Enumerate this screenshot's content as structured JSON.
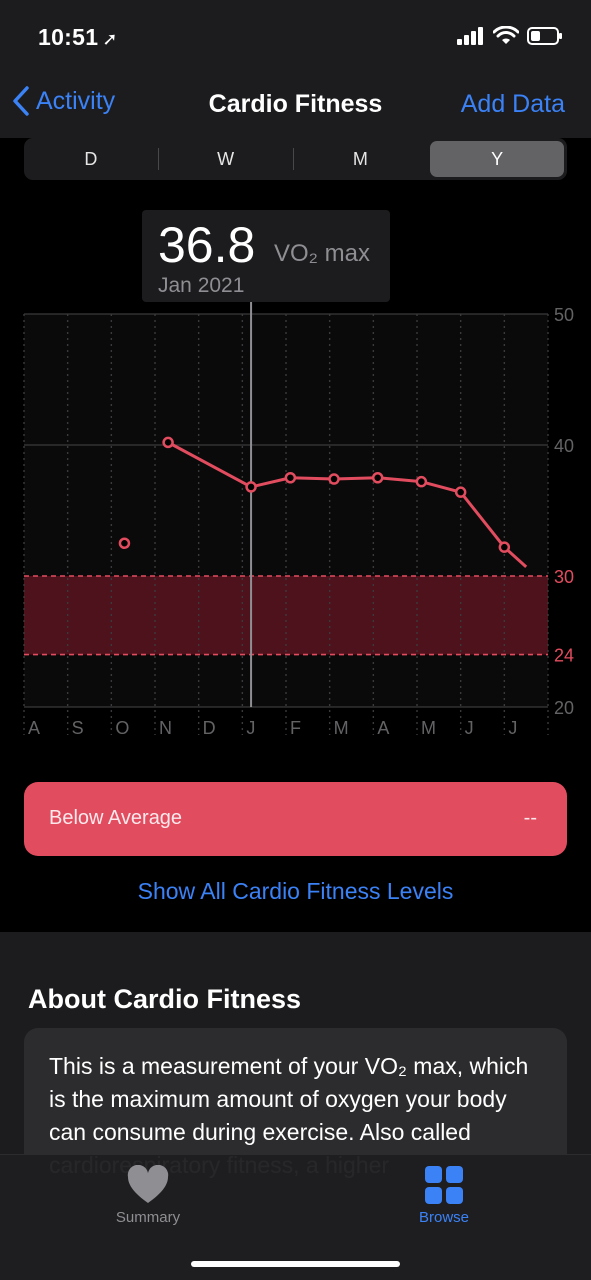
{
  "status": {
    "time": "10:51",
    "location_glyph": "➚"
  },
  "nav": {
    "back_label": "Activity",
    "title": "Cardio Fitness",
    "action_label": "Add Data"
  },
  "segments": [
    "D",
    "W",
    "M",
    "Y"
  ],
  "selected_segment": "Y",
  "callout": {
    "value": "36.8",
    "unit": "VO₂ max",
    "date": "Jan 2021"
  },
  "chart_data": {
    "type": "line",
    "categories": [
      "A",
      "S",
      "O",
      "N",
      "D",
      "J",
      "F",
      "M",
      "A",
      "M",
      "J",
      "J"
    ],
    "y_ticks": [
      50,
      40,
      30,
      24,
      20
    ],
    "ylim": [
      20,
      50
    ],
    "band": [
      24,
      30
    ],
    "series": [
      {
        "points": [
          [
            2.3,
            32.5
          ],
          [
            3.3,
            40.2
          ],
          [
            5.2,
            36.8
          ],
          [
            6.1,
            37.5
          ],
          [
            7.1,
            37.4
          ],
          [
            8.1,
            37.5
          ],
          [
            9.1,
            37.2
          ],
          [
            10.0,
            36.4
          ],
          [
            11.0,
            32.2
          ],
          [
            11.5,
            30.7
          ]
        ]
      }
    ],
    "selected_x": 5.2,
    "line_color": "#e24c5f",
    "band_color": "#5a1420"
  },
  "level": {
    "label": "Below Average",
    "value": "--"
  },
  "show_all_label": "Show All Cardio Fitness Levels",
  "about": {
    "title": "About Cardio Fitness",
    "text": "This is a measurement of your VO₂ max, which is the maximum amount of oxygen your body can consume during exercise. Also called cardiorespiratory fitness, a higher"
  },
  "tabs": [
    {
      "label": "Summary",
      "icon": "heart-icon",
      "active": false
    },
    {
      "label": "Browse",
      "icon": "grid-icon",
      "active": true
    }
  ]
}
